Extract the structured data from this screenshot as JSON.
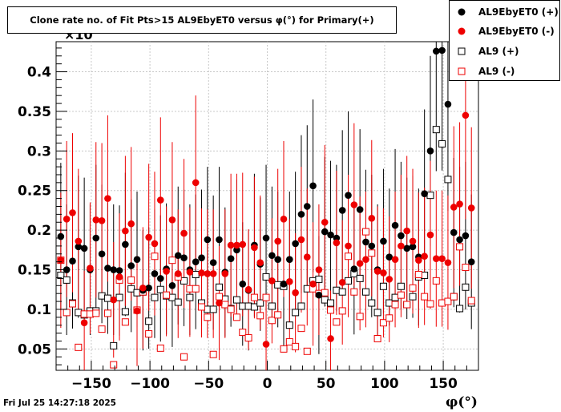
{
  "chart_data": {
    "type": "scatter",
    "title": "Clone rate no. of Fit Pts>15 AL9EbyET0 versus φ(°) for Primary(+)",
    "xlabel": "φ(°)",
    "ylabel": "",
    "y_exponent_label": "×10",
    "xlim": [
      -180,
      180
    ],
    "ylim": [
      0.023,
      0.438
    ],
    "x_ticks": [
      -150,
      -100,
      -50,
      0,
      50,
      100,
      150
    ],
    "y_ticks": [
      0.05,
      0.1,
      0.15,
      0.2,
      0.25,
      0.3,
      0.35,
      0.4
    ],
    "x_tick_labels": [
      "−150",
      "−100",
      "−50",
      "0",
      "50",
      "100",
      "150"
    ],
    "y_tick_labels": [
      "0.05",
      "0.1",
      "0.15",
      "0.2",
      "0.25",
      "0.3",
      "0.35",
      "0.4"
    ],
    "grid": true,
    "legend_position": "top-right",
    "series": [
      {
        "name": "AL9EbyET0 (+)",
        "marker": "filled-circle",
        "color": "#000000",
        "points": [
          [
            -176,
            0.192
          ],
          [
            -171,
            0.15
          ],
          [
            -166,
            0.161
          ],
          [
            -161,
            0.179
          ],
          [
            -156,
            0.177
          ],
          [
            -151,
            0.15
          ],
          [
            -146,
            0.19
          ],
          [
            -141,
            0.17
          ],
          [
            -136,
            0.152
          ],
          [
            -131,
            0.15
          ],
          [
            -126,
            0.149
          ],
          [
            -121,
            0.182
          ],
          [
            -116,
            0.155
          ],
          [
            -111,
            0.163
          ],
          [
            -106,
            0.124
          ],
          [
            -101,
            0.127
          ],
          [
            -96,
            0.145
          ],
          [
            -91,
            0.139
          ],
          [
            -86,
            0.151
          ],
          [
            -81,
            0.13
          ],
          [
            -76,
            0.168
          ],
          [
            -71,
            0.165
          ],
          [
            -66,
            0.15
          ],
          [
            -61,
            0.16
          ],
          [
            -56,
            0.165
          ],
          [
            -51,
            0.188
          ],
          [
            -46,
            0.159
          ],
          [
            -41,
            0.188
          ],
          [
            -36,
            0.147
          ],
          [
            -31,
            0.164
          ],
          [
            -26,
            0.175
          ],
          [
            -21,
            0.132
          ],
          [
            -16,
            0.124
          ],
          [
            -11,
            0.181
          ],
          [
            -6,
            0.157
          ],
          [
            -1,
            0.19
          ],
          [
            4,
            0.168
          ],
          [
            9,
            0.163
          ],
          [
            14,
            0.132
          ],
          [
            19,
            0.163
          ],
          [
            24,
            0.183
          ],
          [
            29,
            0.22
          ],
          [
            34,
            0.23
          ],
          [
            39,
            0.256
          ],
          [
            44,
            0.118
          ],
          [
            49,
            0.198
          ],
          [
            54,
            0.194
          ],
          [
            59,
            0.19
          ],
          [
            64,
            0.225
          ],
          [
            69,
            0.244
          ],
          [
            74,
            0.151
          ],
          [
            79,
            0.226
          ],
          [
            84,
            0.185
          ],
          [
            89,
            0.18
          ],
          [
            94,
            0.15
          ],
          [
            99,
            0.186
          ],
          [
            104,
            0.166
          ],
          [
            109,
            0.206
          ],
          [
            114,
            0.193
          ],
          [
            119,
            0.177
          ],
          [
            124,
            0.179
          ],
          [
            129,
            0.166
          ],
          [
            134,
            0.246
          ],
          [
            139,
            0.3
          ],
          [
            144,
            0.426
          ],
          [
            149,
            0.427
          ],
          [
            154,
            0.359
          ],
          [
            159,
            0.197
          ],
          [
            164,
            0.188
          ],
          [
            169,
            0.193
          ],
          [
            174,
            0.16
          ]
        ]
      },
      {
        "name": "AL9EbyET0 (-)",
        "marker": "filled-circle",
        "color": "#ee0000",
        "points": [
          [
            -176,
            0.162
          ],
          [
            -171,
            0.214
          ],
          [
            -166,
            0.222
          ],
          [
            -161,
            0.186
          ],
          [
            -156,
            0.083
          ],
          [
            -151,
            0.152
          ],
          [
            -146,
            0.213
          ],
          [
            -141,
            0.212
          ],
          [
            -136,
            0.24
          ],
          [
            -131,
            0.112
          ],
          [
            -126,
            0.141
          ],
          [
            -121,
            0.199
          ],
          [
            -116,
            0.208
          ],
          [
            -111,
            0.098
          ],
          [
            -106,
            0.127
          ],
          [
            -101,
            0.191
          ],
          [
            -96,
            0.183
          ],
          [
            -91,
            0.238
          ],
          [
            -86,
            0.148
          ],
          [
            -81,
            0.213
          ],
          [
            -76,
            0.145
          ],
          [
            -71,
            0.196
          ],
          [
            -66,
            0.147
          ],
          [
            -61,
            0.26
          ],
          [
            -56,
            0.146
          ],
          [
            -51,
            0.145
          ],
          [
            -46,
            0.145
          ],
          [
            -41,
            0.108
          ],
          [
            -36,
            0.145
          ],
          [
            -31,
            0.181
          ],
          [
            -26,
            0.181
          ],
          [
            -21,
            0.182
          ],
          [
            -16,
            0.125
          ],
          [
            -11,
            0.178
          ],
          [
            -6,
            0.159
          ],
          [
            -1,
            0.056
          ],
          [
            4,
            0.136
          ],
          [
            9,
            0.186
          ],
          [
            14,
            0.214
          ],
          [
            19,
            0.135
          ],
          [
            24,
            0.121
          ],
          [
            29,
            0.188
          ],
          [
            34,
            0.166
          ],
          [
            39,
            0.132
          ],
          [
            44,
            0.15
          ],
          [
            49,
            0.21
          ],
          [
            54,
            0.063
          ],
          [
            59,
            0.184
          ],
          [
            64,
            0.134
          ],
          [
            69,
            0.18
          ],
          [
            74,
            0.232
          ],
          [
            79,
            0.158
          ],
          [
            84,
            0.163
          ],
          [
            89,
            0.215
          ],
          [
            94,
            0.148
          ],
          [
            99,
            0.146
          ],
          [
            104,
            0.138
          ],
          [
            109,
            0.163
          ],
          [
            114,
            0.18
          ],
          [
            119,
            0.199
          ],
          [
            124,
            0.186
          ],
          [
            129,
            0.162
          ],
          [
            134,
            0.167
          ],
          [
            139,
            0.194
          ],
          [
            144,
            0.164
          ],
          [
            149,
            0.164
          ],
          [
            154,
            0.159
          ],
          [
            159,
            0.229
          ],
          [
            164,
            0.233
          ],
          [
            169,
            0.345
          ],
          [
            174,
            0.228
          ]
        ]
      },
      {
        "name": "AL9 (+)",
        "marker": "open-square",
        "color": "#000000",
        "points": [
          [
            -176,
            0.143
          ],
          [
            -171,
            0.137
          ],
          [
            -166,
            0.108
          ],
          [
            -161,
            0.096
          ],
          [
            -156,
            0.093
          ],
          [
            -151,
            0.098
          ],
          [
            -146,
            0.098
          ],
          [
            -141,
            0.117
          ],
          [
            -136,
            0.114
          ],
          [
            -131,
            0.054
          ],
          [
            -126,
            0.115
          ],
          [
            -121,
            0.097
          ],
          [
            -116,
            0.126
          ],
          [
            -111,
            0.121
          ],
          [
            -106,
            0.122
          ],
          [
            -101,
            0.085
          ],
          [
            -96,
            0.115
          ],
          [
            -91,
            0.125
          ],
          [
            -86,
            0.117
          ],
          [
            -81,
            0.115
          ],
          [
            -76,
            0.109
          ],
          [
            -71,
            0.136
          ],
          [
            -66,
            0.115
          ],
          [
            -61,
            0.144
          ],
          [
            -56,
            0.108
          ],
          [
            -51,
            0.1
          ],
          [
            -46,
            0.1
          ],
          [
            -41,
            0.128
          ],
          [
            -36,
            0.113
          ],
          [
            -31,
            0.101
          ],
          [
            -26,
            0.112
          ],
          [
            -21,
            0.104
          ],
          [
            -16,
            0.104
          ],
          [
            -11,
            0.103
          ],
          [
            -6,
            0.108
          ],
          [
            -1,
            0.141
          ],
          [
            4,
            0.104
          ],
          [
            9,
            0.131
          ],
          [
            14,
            0.129
          ],
          [
            19,
            0.08
          ],
          [
            24,
            0.096
          ],
          [
            29,
            0.104
          ],
          [
            34,
            0.126
          ],
          [
            39,
            0.136
          ],
          [
            44,
            0.138
          ],
          [
            49,
            0.112
          ],
          [
            54,
            0.108
          ],
          [
            59,
            0.124
          ],
          [
            64,
            0.122
          ],
          [
            69,
            0.136
          ],
          [
            74,
            0.145
          ],
          [
            79,
            0.139
          ],
          [
            84,
            0.122
          ],
          [
            89,
            0.108
          ],
          [
            94,
            0.096
          ],
          [
            99,
            0.129
          ],
          [
            104,
            0.108
          ],
          [
            109,
            0.115
          ],
          [
            114,
            0.129
          ],
          [
            119,
            0.106
          ],
          [
            124,
            0.116
          ],
          [
            129,
            0.141
          ],
          [
            134,
            0.143
          ],
          [
            139,
            0.244
          ],
          [
            144,
            0.327
          ],
          [
            149,
            0.309
          ],
          [
            154,
            0.264
          ],
          [
            159,
            0.116
          ],
          [
            164,
            0.101
          ],
          [
            169,
            0.128
          ],
          [
            174,
            0.108
          ]
        ]
      },
      {
        "name": "AL9 (-)",
        "marker": "open-square",
        "color": "#ee0000",
        "points": [
          [
            -176,
            0.162
          ],
          [
            -171,
            0.096
          ],
          [
            -166,
            0.107
          ],
          [
            -161,
            0.052
          ],
          [
            -156,
            0.094
          ],
          [
            -151,
            0.094
          ],
          [
            -146,
            0.095
          ],
          [
            -141,
            0.075
          ],
          [
            -136,
            0.095
          ],
          [
            -131,
            0.03
          ],
          [
            -126,
            0.137
          ],
          [
            -121,
            0.084
          ],
          [
            -116,
            0.137
          ],
          [
            -111,
            0.099
          ],
          [
            -106,
            0.122
          ],
          [
            -101,
            0.069
          ],
          [
            -96,
            0.167
          ],
          [
            -91,
            0.051
          ],
          [
            -86,
            0.118
          ],
          [
            -81,
            0.162
          ],
          [
            -76,
            0.141
          ],
          [
            -71,
            0.04
          ],
          [
            -66,
            0.126
          ],
          [
            -61,
            0.126
          ],
          [
            -56,
            0.103
          ],
          [
            -51,
            0.09
          ],
          [
            -46,
            0.043
          ],
          [
            -41,
            0.116
          ],
          [
            -36,
            0.106
          ],
          [
            -31,
            0.1
          ],
          [
            -26,
            0.09
          ],
          [
            -21,
            0.071
          ],
          [
            -16,
            0.064
          ],
          [
            -11,
            0.115
          ],
          [
            -6,
            0.092
          ],
          [
            -1,
            0.115
          ],
          [
            4,
            0.086
          ],
          [
            9,
            0.093
          ],
          [
            14,
            0.05
          ],
          [
            19,
            0.059
          ],
          [
            24,
            0.053
          ],
          [
            29,
            0.076
          ],
          [
            34,
            0.047
          ],
          [
            39,
            0.126
          ],
          [
            44,
            0.12
          ],
          [
            49,
            0.121
          ],
          [
            54,
            0.099
          ],
          [
            59,
            0.084
          ],
          [
            64,
            0.098
          ],
          [
            69,
            0.167
          ],
          [
            74,
            0.122
          ],
          [
            79,
            0.091
          ],
          [
            84,
            0.198
          ],
          [
            89,
            0.171
          ],
          [
            94,
            0.063
          ],
          [
            99,
            0.083
          ],
          [
            104,
            0.089
          ],
          [
            109,
            0.106
          ],
          [
            114,
            0.118
          ],
          [
            119,
            0.106
          ],
          [
            124,
            0.127
          ],
          [
            129,
            0.144
          ],
          [
            134,
            0.116
          ],
          [
            139,
            0.107
          ],
          [
            144,
            0.136
          ],
          [
            149,
            0.108
          ],
          [
            154,
            0.11
          ],
          [
            159,
            0.116
          ],
          [
            164,
            0.179
          ],
          [
            169,
            0.153
          ],
          [
            174,
            0.111
          ]
        ]
      }
    ]
  },
  "footer": {
    "timestamp": "Fri Jul 25 14:27:18 2025"
  }
}
